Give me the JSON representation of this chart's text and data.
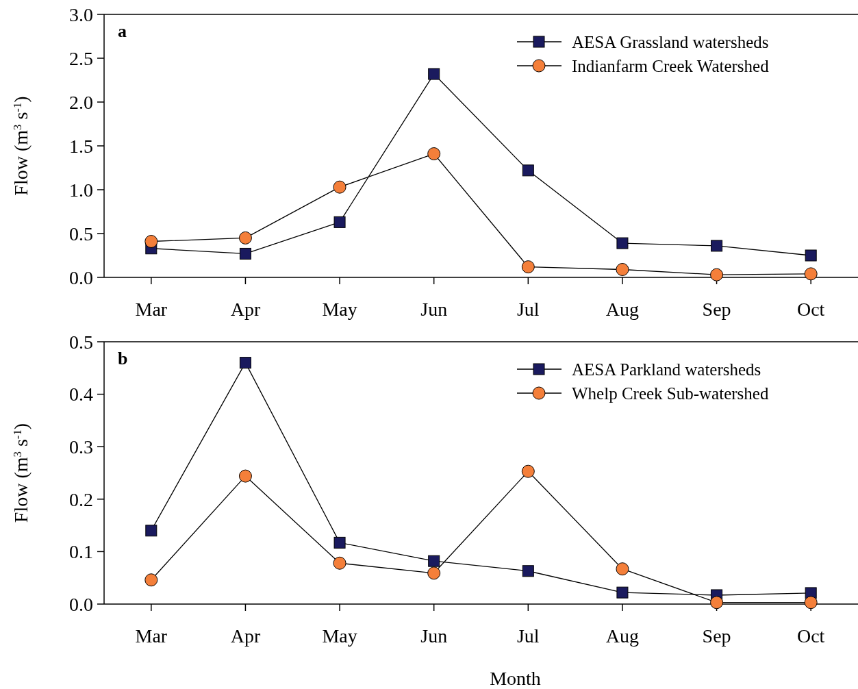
{
  "chart_data": [
    {
      "type": "line",
      "title": "a",
      "ylabel": "Flow (m$^{3}$ s$^{-1}$)",
      "categories": [
        "Mar",
        "Apr",
        "May",
        "Jun",
        "Jul",
        "Aug",
        "Sep",
        "Oct"
      ],
      "series": [
        {
          "name": "AESA Grassland watersheds",
          "color": "#1a1a5e",
          "marker": "square",
          "values": [
            0.33,
            0.27,
            0.63,
            2.32,
            1.22,
            0.39,
            0.36,
            0.25
          ]
        },
        {
          "name": "Indianfarm Creek Watershed",
          "color": "#f47f3a",
          "marker": "circle",
          "values": [
            0.41,
            0.45,
            1.03,
            1.41,
            0.12,
            0.09,
            0.03,
            0.04
          ]
        }
      ],
      "ylim": [
        0,
        3
      ],
      "yticks": [
        {
          "value": 0,
          "label": "0.0"
        },
        0.5,
        {
          "value": 1,
          "label": "1.0"
        },
        1.5,
        {
          "value": 2,
          "label": "2.0"
        },
        2.5,
        {
          "value": 3,
          "label": "3.0"
        }
      ],
      "legend": "top right",
      "grid": false
    },
    {
      "type": "line",
      "title": "b",
      "xlabel": "Month",
      "ylabel": "Flow (m$^{3}$ s$^{-1}$)",
      "categories": [
        "Mar",
        "Apr",
        "May",
        "Jun",
        "Jul",
        "Aug",
        "Sep",
        "Oct"
      ],
      "series": [
        {
          "name": "AESA Parkland watersheds",
          "color": "#1a1a5e",
          "marker": "square",
          "values": [
            0.14,
            0.46,
            0.117,
            0.082,
            0.063,
            0.022,
            0.017,
            0.021
          ]
        },
        {
          "name": "Whelp Creek Sub-watershed",
          "color": "#f47f3a",
          "marker": "circle",
          "values": [
            0.046,
            0.244,
            0.078,
            0.059,
            0.253,
            0.067,
            0.003,
            0.003
          ]
        }
      ],
      "ylim": [
        0,
        0.5
      ],
      "yticks": [
        {
          "value": 0,
          "label": "0.0"
        },
        0.1,
        0.2,
        0.3,
        0.4,
        0.5
      ],
      "legend": "top right",
      "grid": false
    }
  ]
}
